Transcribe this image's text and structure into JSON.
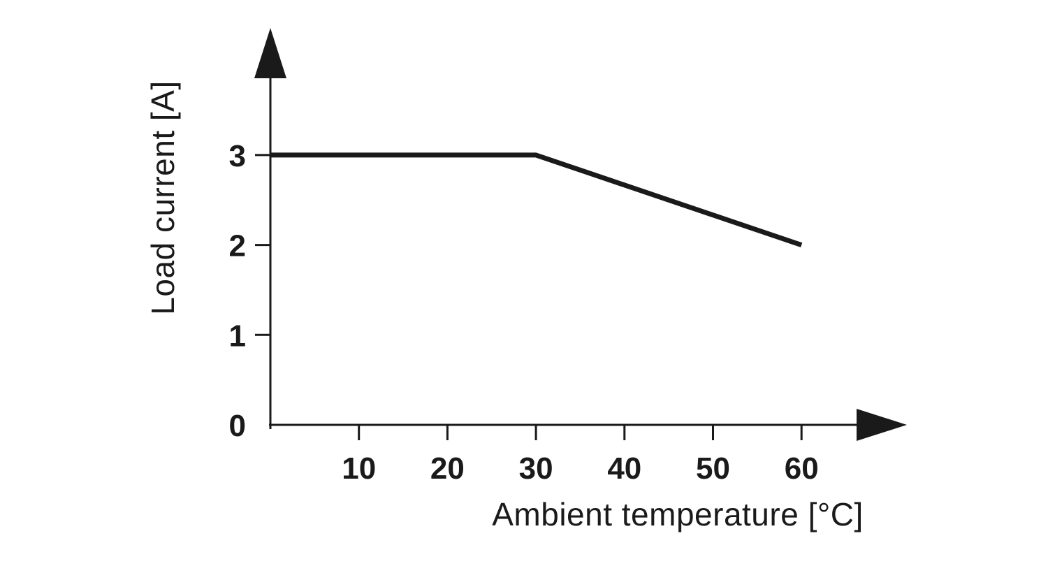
{
  "chart_data": {
    "type": "line",
    "title": "",
    "xlabel": "Ambient temperature [°C]",
    "ylabel": "Load current [A]",
    "x_ticks": [
      10,
      20,
      30,
      40,
      50,
      60
    ],
    "y_ticks": [
      0,
      1,
      2,
      3
    ],
    "xlim": [
      0,
      67
    ],
    "ylim": [
      0,
      4.4
    ],
    "grid": false,
    "legend": "none",
    "background": "#ffffff",
    "axis_color": "#1a1a1a",
    "line_color": "#1a1a1a",
    "series": [
      {
        "name": "load-current-vs-ambient-temperature",
        "x": [
          0,
          30,
          60
        ],
        "y": [
          3,
          3,
          2
        ]
      }
    ]
  }
}
